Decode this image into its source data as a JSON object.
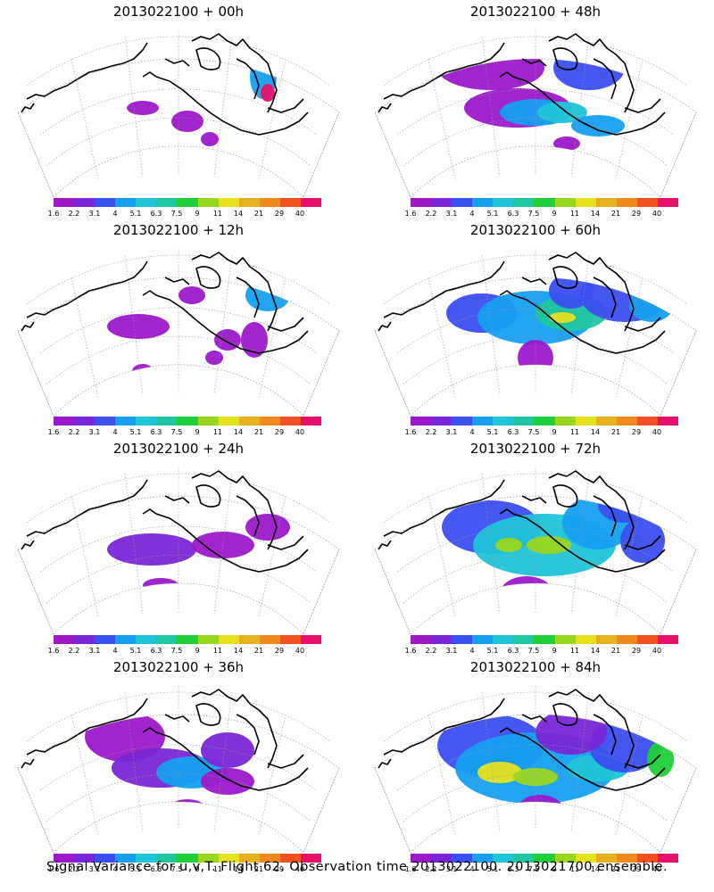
{
  "colorbar": {
    "colors": [
      "#9b19c9",
      "#7a26d6",
      "#3a4ff0",
      "#16a0f0",
      "#1fc4d8",
      "#1fc6a0",
      "#1fcf3a",
      "#9bd61f",
      "#e6e21f",
      "#e6b01f",
      "#f08a1f",
      "#f0521f",
      "#e6106a"
    ],
    "labels": [
      "1.6",
      "2.2",
      "3.1",
      "4",
      "5.1",
      "6.3",
      "7.5",
      "9",
      "11",
      "14",
      "21",
      "29",
      "40"
    ]
  },
  "panels": [
    {
      "id": "p00",
      "title": "2013022100 + 00h"
    },
    {
      "id": "p48",
      "title": "2013022100 + 48h"
    },
    {
      "id": "p12",
      "title": "2013022100 + 12h"
    },
    {
      "id": "p60",
      "title": "2013022100 + 60h"
    },
    {
      "id": "p24",
      "title": "2013022100 + 24h"
    },
    {
      "id": "p72",
      "title": "2013022100 + 72h"
    },
    {
      "id": "p36",
      "title": "2013022100 + 36h"
    },
    {
      "id": "p84",
      "title": "2013022100 + 84h"
    }
  ],
  "footer": "Signal Variance for u,v,T. Flight 62. Observation time 2013022100. 2013021700 ensemble."
}
